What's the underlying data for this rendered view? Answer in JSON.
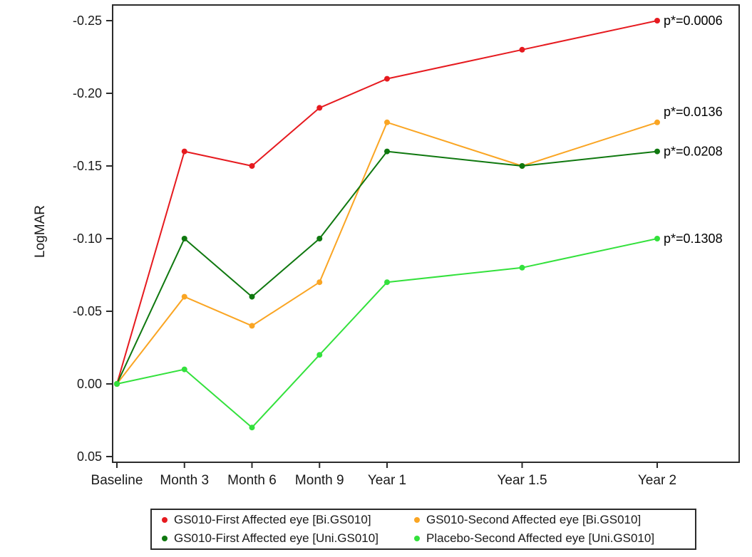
{
  "page": {
    "background_color": "#ffffff",
    "frame_color": "#2b2b2b",
    "text_color": "#1a1a1a"
  },
  "chart_data": {
    "type": "line",
    "title": "",
    "xlabel": "",
    "ylabel": "LogMAR",
    "grid": false,
    "legend_position": "bottom-boxed",
    "marker": "filled-circle",
    "y_axis": {
      "inverted": true,
      "top_value": -0.25,
      "bottom_value": 0.05
    },
    "y_ticks": [
      -0.25,
      -0.2,
      -0.15,
      -0.1,
      -0.05,
      0.0,
      0.05
    ],
    "y_tick_labels": [
      "-0.25",
      "-0.20",
      "-0.15",
      "-0.10",
      "-0.05",
      "0.00",
      "0.05"
    ],
    "x_tick_labels": [
      "Baseline",
      "Month 3",
      "Month 6",
      "Month 9",
      "Year 1",
      "Year 1.5",
      "Year 2"
    ],
    "x_positions_months": [
      0,
      3,
      6,
      9,
      12,
      18,
      24
    ],
    "series": [
      {
        "name": "GS010-First Affected eye [Bi.GS010]",
        "color": "#E61A1F",
        "p_label": "p*=0.0006",
        "p_label_dy": 0,
        "values": [
          0.0,
          -0.16,
          -0.15,
          -0.19,
          -0.21,
          -0.23,
          -0.25
        ]
      },
      {
        "name": "GS010-Second Affected eye [Bi.GS010]",
        "color": "#FAA523",
        "p_label": "p*=0.0136",
        "p_label_dy": -15,
        "values": [
          0.0,
          -0.06,
          -0.04,
          -0.07,
          -0.18,
          -0.15,
          -0.18
        ]
      },
      {
        "name": "GS010-First Affected eye [Uni.GS010]",
        "color": "#0F780F",
        "p_label": "p*=0.0208",
        "p_label_dy": 0,
        "values": [
          0.0,
          -0.1,
          -0.06,
          -0.1,
          -0.16,
          -0.15,
          -0.16
        ]
      },
      {
        "name": "Placebo-Second Affected eye [Uni.GS010]",
        "color": "#33E13C",
        "p_label": "p*=0.1308",
        "p_label_dy": 0,
        "values": [
          0.0,
          -0.01,
          0.03,
          -0.02,
          -0.07,
          -0.08,
          -0.1
        ]
      }
    ]
  }
}
